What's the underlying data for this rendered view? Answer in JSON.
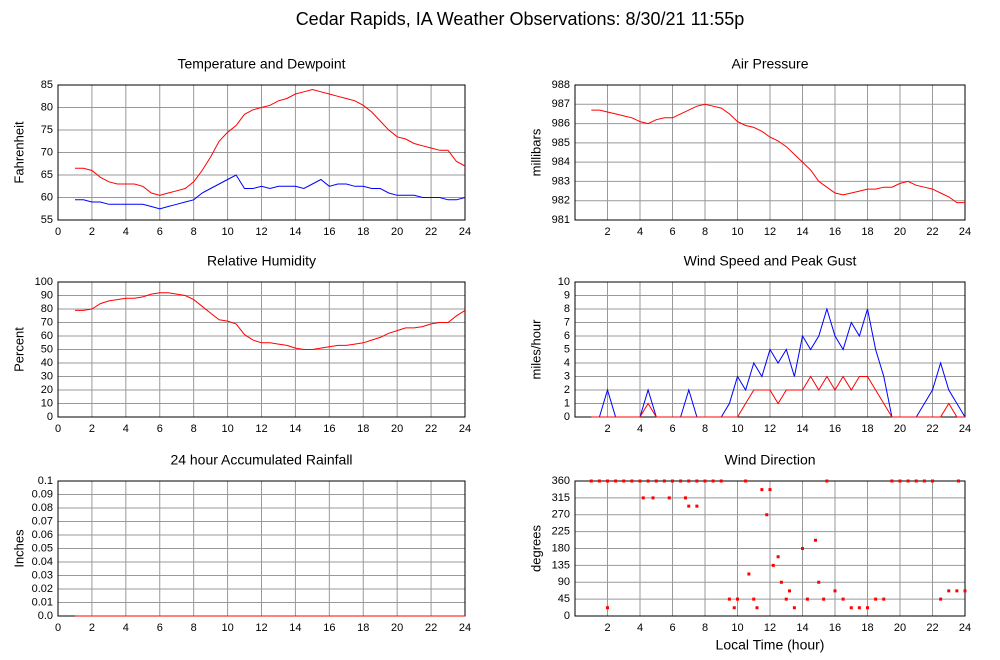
{
  "title": "Cedar Rapids, IA Weather Observations: 8/30/21 11:55p",
  "chart_data": [
    {
      "type": "line",
      "title": "Temperature and Dewpoint",
      "ylabel": "Fahrenheit",
      "grid": true,
      "xlim": [
        0,
        24
      ],
      "xticks": [
        0,
        2,
        4,
        6,
        8,
        10,
        12,
        14,
        16,
        18,
        20,
        22,
        24
      ],
      "ylim": [
        55,
        85
      ],
      "yticks": [
        55,
        60,
        65,
        70,
        75,
        80,
        85
      ],
      "x": [
        1,
        1.5,
        2,
        2.5,
        3,
        3.5,
        4,
        4.5,
        5,
        5.5,
        6,
        6.5,
        7,
        7.5,
        8,
        8.5,
        9,
        9.5,
        10,
        10.5,
        11,
        11.5,
        12,
        12.5,
        13,
        13.5,
        14,
        14.5,
        15,
        15.5,
        16,
        16.5,
        17,
        17.5,
        18,
        18.5,
        19,
        19.5,
        20,
        20.5,
        21,
        21.5,
        22,
        22.5,
        23,
        23.5,
        24
      ],
      "series": [
        {
          "name": "Temperature",
          "color": "#ff0000",
          "values": [
            66.5,
            66.5,
            66,
            64.5,
            63.5,
            63,
            63,
            63,
            62.5,
            61,
            60.5,
            61,
            61.5,
            62,
            63.5,
            66,
            69,
            72.5,
            74.5,
            76,
            78.5,
            79.5,
            80,
            80.5,
            81.5,
            82,
            83,
            83.5,
            84,
            83.5,
            83,
            82.5,
            82,
            81.5,
            80.5,
            79,
            77,
            75,
            73.5,
            73,
            72,
            71.5,
            71,
            70.5,
            70.5,
            68,
            67
          ]
        },
        {
          "name": "Dewpoint",
          "color": "#0000ff",
          "values": [
            59.5,
            59.5,
            59,
            59,
            58.5,
            58.5,
            58.5,
            58.5,
            58.5,
            58,
            57.5,
            58,
            58.5,
            59,
            59.5,
            61,
            62,
            63,
            64,
            65,
            62,
            62,
            62.5,
            62,
            62.5,
            62.5,
            62.5,
            62,
            63,
            64,
            62.5,
            63,
            63,
            62.5,
            62.5,
            62,
            62,
            61,
            60.5,
            60.5,
            60.5,
            60,
            60,
            60,
            59.5,
            59.5,
            60
          ]
        }
      ]
    },
    {
      "type": "line",
      "title": "Air Pressure",
      "ylabel": "millibars",
      "grid": true,
      "xlim": [
        0,
        24
      ],
      "xticks": [
        2,
        4,
        6,
        8,
        10,
        12,
        14,
        16,
        18,
        20,
        22,
        24
      ],
      "ylim": [
        981,
        988
      ],
      "yticks": [
        981,
        982,
        983,
        984,
        985,
        986,
        987,
        988
      ],
      "x": [
        1,
        1.5,
        2,
        2.5,
        3,
        3.5,
        4,
        4.5,
        5,
        5.5,
        6,
        6.5,
        7,
        7.5,
        8,
        8.5,
        9,
        9.5,
        10,
        10.5,
        11,
        11.5,
        12,
        12.5,
        13,
        13.5,
        14,
        14.5,
        15,
        15.5,
        16,
        16.5,
        17,
        17.5,
        18,
        18.5,
        19,
        19.5,
        20,
        20.5,
        21,
        21.5,
        22,
        22.5,
        23,
        23.5,
        24
      ],
      "series": [
        {
          "name": "Pressure",
          "color": "#ff0000",
          "values": [
            986.7,
            986.7,
            986.6,
            986.5,
            986.4,
            986.3,
            986.1,
            986.0,
            986.2,
            986.3,
            986.3,
            986.5,
            986.7,
            986.9,
            987.0,
            986.9,
            986.8,
            986.5,
            986.1,
            985.9,
            985.8,
            985.6,
            985.3,
            985.1,
            984.8,
            984.4,
            984.0,
            983.6,
            983.0,
            982.7,
            982.4,
            982.3,
            982.4,
            982.5,
            982.6,
            982.6,
            982.7,
            982.7,
            982.9,
            983.0,
            982.8,
            982.7,
            982.6,
            982.4,
            982.2,
            981.9,
            981.9
          ]
        }
      ]
    },
    {
      "type": "line",
      "title": "Relative Humidity",
      "ylabel": "Percent",
      "grid": true,
      "xlim": [
        0,
        24
      ],
      "xticks": [
        0,
        2,
        4,
        6,
        8,
        10,
        12,
        14,
        16,
        18,
        20,
        22,
        24
      ],
      "ylim": [
        0,
        100
      ],
      "yticks": [
        0,
        10,
        20,
        30,
        40,
        50,
        60,
        70,
        80,
        90,
        100
      ],
      "x": [
        1,
        1.5,
        2,
        2.5,
        3,
        3.5,
        4,
        4.5,
        5,
        5.5,
        6,
        6.5,
        7,
        7.5,
        8,
        8.5,
        9,
        9.5,
        10,
        10.5,
        11,
        11.5,
        12,
        12.5,
        13,
        13.5,
        14,
        14.5,
        15,
        15.5,
        16,
        16.5,
        17,
        17.5,
        18,
        18.5,
        19,
        19.5,
        20,
        20.5,
        21,
        21.5,
        22,
        22.5,
        23,
        23.5,
        24
      ],
      "series": [
        {
          "name": "Humidity",
          "color": "#ff0000",
          "values": [
            79,
            79,
            80,
            84,
            86,
            87,
            88,
            88,
            89,
            91,
            92,
            92,
            91,
            90,
            87,
            82,
            77,
            72,
            71,
            69,
            61,
            57,
            55,
            55,
            54,
            53,
            51,
            50,
            50,
            51,
            52,
            53,
            53,
            54,
            55,
            57,
            59,
            62,
            64,
            66,
            66,
            67,
            69,
            70,
            70,
            75,
            79
          ]
        }
      ]
    },
    {
      "type": "line",
      "title": "Wind Speed and Peak Gust",
      "ylabel": "miles/hour",
      "grid": true,
      "xlim": [
        0,
        24
      ],
      "xticks": [
        2,
        4,
        6,
        8,
        10,
        12,
        14,
        16,
        18,
        20,
        22,
        24
      ],
      "ylim": [
        0,
        10
      ],
      "yticks": [
        0,
        1,
        2,
        3,
        4,
        5,
        6,
        7,
        8,
        9,
        10
      ],
      "x": [
        1,
        1.5,
        2,
        2.5,
        3,
        3.5,
        4,
        4.5,
        5,
        5.5,
        6,
        6.5,
        7,
        7.5,
        8,
        8.5,
        9,
        9.5,
        10,
        10.5,
        11,
        11.5,
        12,
        12.5,
        13,
        13.5,
        14,
        14.5,
        15,
        15.5,
        16,
        16.5,
        17,
        17.5,
        18,
        18.5,
        19,
        19.5,
        20,
        20.5,
        21,
        21.5,
        22,
        22.5,
        23,
        23.5,
        24
      ],
      "series": [
        {
          "name": "Peak Gust",
          "color": "#0000ff",
          "values": [
            0,
            0,
            2,
            0,
            0,
            0,
            0,
            2,
            0,
            0,
            0,
            0,
            2,
            0,
            0,
            0,
            0,
            1,
            3,
            2,
            4,
            3,
            5,
            4,
            5,
            3,
            6,
            5,
            6,
            8,
            6,
            5,
            7,
            6,
            8,
            5,
            3,
            0,
            0,
            0,
            0,
            1,
            2,
            4,
            2,
            1,
            0
          ]
        },
        {
          "name": "Wind Speed",
          "color": "#ff0000",
          "values": [
            0,
            0,
            0,
            0,
            0,
            0,
            0,
            1,
            0,
            0,
            0,
            0,
            0,
            0,
            0,
            0,
            0,
            0,
            0,
            1,
            2,
            2,
            2,
            1,
            2,
            2,
            2,
            3,
            2,
            3,
            2,
            3,
            2,
            3,
            3,
            2,
            1,
            0,
            0,
            0,
            0,
            0,
            0,
            0,
            1,
            0,
            0
          ]
        }
      ]
    },
    {
      "type": "line",
      "title": "24 hour Accumulated Rainfall",
      "ylabel": "Inches",
      "grid": true,
      "xlim": [
        0,
        24
      ],
      "xticks": [
        0,
        2,
        4,
        6,
        8,
        10,
        12,
        14,
        16,
        18,
        20,
        22,
        24
      ],
      "ylim": [
        0,
        0.1
      ],
      "yticks": [
        {
          "value": 0,
          "label": "0.0"
        },
        0.01,
        0.02,
        0.03,
        0.04,
        0.05,
        0.06,
        0.07,
        0.08,
        0.09,
        0.1
      ],
      "x": [
        1,
        24
      ],
      "series": [
        {
          "name": "Rainfall",
          "color": "#ff0000",
          "values": [
            0,
            0
          ]
        }
      ]
    },
    {
      "type": "scatter",
      "title": "Wind Direction",
      "ylabel": "degrees",
      "xlabel": "Local Time (hour)",
      "grid": true,
      "xlim": [
        0,
        24
      ],
      "xticks": [
        2,
        4,
        6,
        8,
        10,
        12,
        14,
        16,
        18,
        20,
        22,
        24
      ],
      "ylim": [
        0,
        360
      ],
      "yticks": [
        0,
        45,
        90,
        135,
        180,
        225,
        270,
        315,
        360
      ],
      "x": [
        1,
        1.5,
        2,
        2.5,
        3,
        3.5,
        4,
        4.5,
        5,
        5.5,
        6,
        6.5,
        7,
        7.5,
        8,
        8.5,
        2,
        4.2,
        4.8,
        5.8,
        6.8,
        7,
        7.5,
        9,
        9.5,
        9.8,
        10,
        10.5,
        10.7,
        11,
        11.2,
        11.5,
        11.8,
        12,
        12.2,
        12.5,
        12.7,
        13,
        13.2,
        13.5,
        14,
        14.3,
        14.8,
        15,
        15.3,
        15.5,
        16,
        16.5,
        17,
        17.5,
        18,
        18.5,
        19,
        19.5,
        20,
        20.5,
        21,
        21.5,
        22,
        22.5,
        23,
        23.5,
        24,
        23.6
      ],
      "series": [
        {
          "name": "Direction",
          "color": "#ff0000",
          "values": [
            360,
            360,
            360,
            360,
            360,
            360,
            360,
            360,
            360,
            360,
            360,
            360,
            360,
            360,
            360,
            360,
            22,
            315,
            315,
            315,
            315,
            293,
            293,
            360,
            45,
            22,
            45,
            360,
            112,
            45,
            22,
            337,
            270,
            337,
            135,
            158,
            90,
            45,
            67,
            22,
            180,
            45,
            202,
            90,
            45,
            360,
            67,
            45,
            22,
            22,
            22,
            45,
            45,
            360,
            360,
            360,
            360,
            360,
            360,
            45,
            67,
            67,
            67,
            360
          ]
        }
      ]
    }
  ]
}
